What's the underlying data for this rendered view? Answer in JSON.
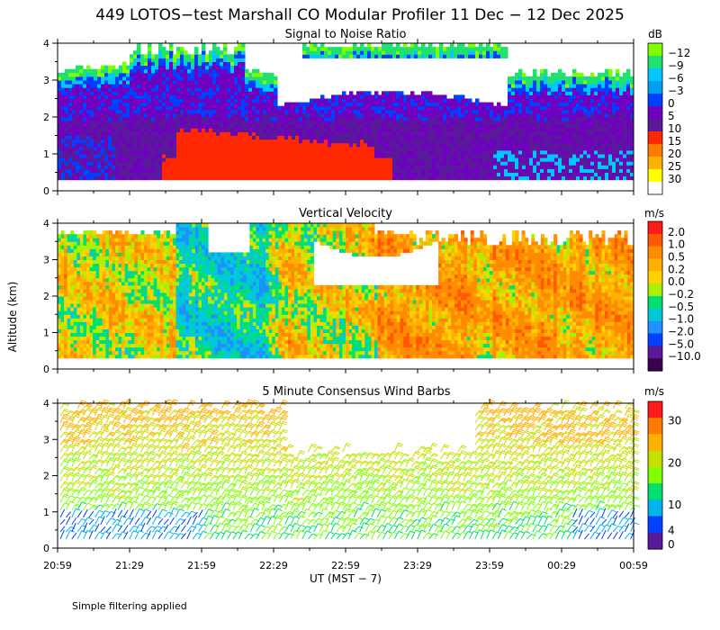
{
  "title": "449 LOTOS−test Marshall CO Modular Profiler 11 Dec − 12 Dec 2025",
  "footnote": "Simple filtering applied",
  "chart_data": [
    {
      "type": "heatmap",
      "title": "Signal to Noise Ratio",
      "ylabel": "Altitude (km)",
      "xlabel": "UT  (MST − 7)",
      "ylim": [
        0,
        4
      ],
      "yticks": [
        "0",
        "1",
        "2",
        "3",
        "4"
      ],
      "unit": "dB",
      "colorbar": {
        "labels": [
          "−12",
          "−9",
          "−6",
          "−3",
          "0",
          "5",
          "10",
          "15",
          "20",
          "25",
          "30"
        ],
        "colors": [
          "#7fff00",
          "#20e070",
          "#00c8ff",
          "#00a0f0",
          "#0040ff",
          "#7000c0",
          "#5a189a",
          "#ff2800",
          "#ff7a00",
          "#ffb000",
          "#ffff00",
          "#ffffff"
        ]
      },
      "summary": {
        "high_snr_layer_km": [
          0.3,
          1.3
        ],
        "low_snr_top_km": [
          2.8,
          4.0
        ]
      }
    },
    {
      "type": "heatmap",
      "title": "Vertical Velocity",
      "ylim": [
        0,
        4
      ],
      "yticks": [
        "0",
        "1",
        "2",
        "3",
        "4"
      ],
      "unit": "m/s",
      "colorbar": {
        "labels": [
          "2.0",
          "1.0",
          "0.5",
          "0.2",
          "0.0",
          "−0.2",
          "−0.5",
          "−1.0",
          "−2.0",
          "−5.0",
          "−10.0"
        ],
        "colors": [
          "#ff1a1a",
          "#ff5a00",
          "#ff8c00",
          "#ffb000",
          "#ffd200",
          "#aaf000",
          "#00e070",
          "#00c8d8",
          "#1e90ff",
          "#0040ff",
          "#5a189a",
          "#3c0050"
        ]
      }
    },
    {
      "type": "scatter",
      "title": "5 Minute Consensus Wind Barbs",
      "ylim": [
        0,
        4
      ],
      "yticks": [
        "0",
        "1",
        "2",
        "3",
        "4"
      ],
      "unit": "m/s",
      "colorbar": {
        "labels": [
          "30",
          "20",
          "10",
          "4",
          "0"
        ],
        "colors": [
          "#ff1a1a",
          "#ff7a00",
          "#ffb000",
          "#c8e000",
          "#7fff00",
          "#00e070",
          "#00b4f0",
          "#0040ff",
          "#5a189a"
        ]
      },
      "speed_range_ms": [
        0,
        35
      ]
    }
  ],
  "x_axis": {
    "ticks": [
      "20:59",
      "21:29",
      "21:59",
      "22:29",
      "22:59",
      "23:29",
      "23:59",
      "00:29",
      "00:59"
    ],
    "label": "UT  (MST − 7)"
  }
}
